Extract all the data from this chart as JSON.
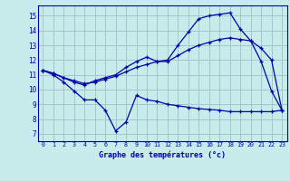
{
  "xlabel": "Graphe des températures (°c)",
  "background_color": "#c8ecec",
  "grid_color": "#a0c8c8",
  "line_color": "#0000aa",
  "hours": [
    0,
    1,
    2,
    3,
    4,
    5,
    6,
    7,
    8,
    9,
    10,
    11,
    12,
    13,
    14,
    15,
    16,
    17,
    18,
    19,
    20,
    21,
    22,
    23
  ],
  "temp_real": [
    11.3,
    11.0,
    10.5,
    9.9,
    9.3,
    9.3,
    8.6,
    7.2,
    7.8,
    9.6,
    9.3,
    9.2,
    9.0,
    8.9,
    8.8,
    8.7,
    8.65,
    8.6,
    8.5,
    8.5,
    8.5,
    8.5,
    8.5,
    8.6
  ],
  "temp_max": [
    11.3,
    11.1,
    10.8,
    10.5,
    10.3,
    10.6,
    10.8,
    11.0,
    11.5,
    11.9,
    12.2,
    11.9,
    12.0,
    13.0,
    13.9,
    14.8,
    15.0,
    15.1,
    15.2,
    14.1,
    13.3,
    11.9,
    9.9,
    8.6
  ],
  "temp_min": [
    11.3,
    11.1,
    10.8,
    10.6,
    10.4,
    10.5,
    10.7,
    10.9,
    11.2,
    11.5,
    11.7,
    11.9,
    11.9,
    12.3,
    12.7,
    13.0,
    13.2,
    13.4,
    13.5,
    13.4,
    13.3,
    12.8,
    12.0,
    8.6
  ],
  "ylim": [
    6.5,
    15.7
  ],
  "yticks": [
    7,
    8,
    9,
    10,
    11,
    12,
    13,
    14,
    15
  ],
  "xlim": [
    -0.5,
    23.5
  ],
  "xticks": [
    0,
    1,
    2,
    3,
    4,
    5,
    6,
    7,
    8,
    9,
    10,
    11,
    12,
    13,
    14,
    15,
    16,
    17,
    18,
    19,
    20,
    21,
    22,
    23
  ]
}
